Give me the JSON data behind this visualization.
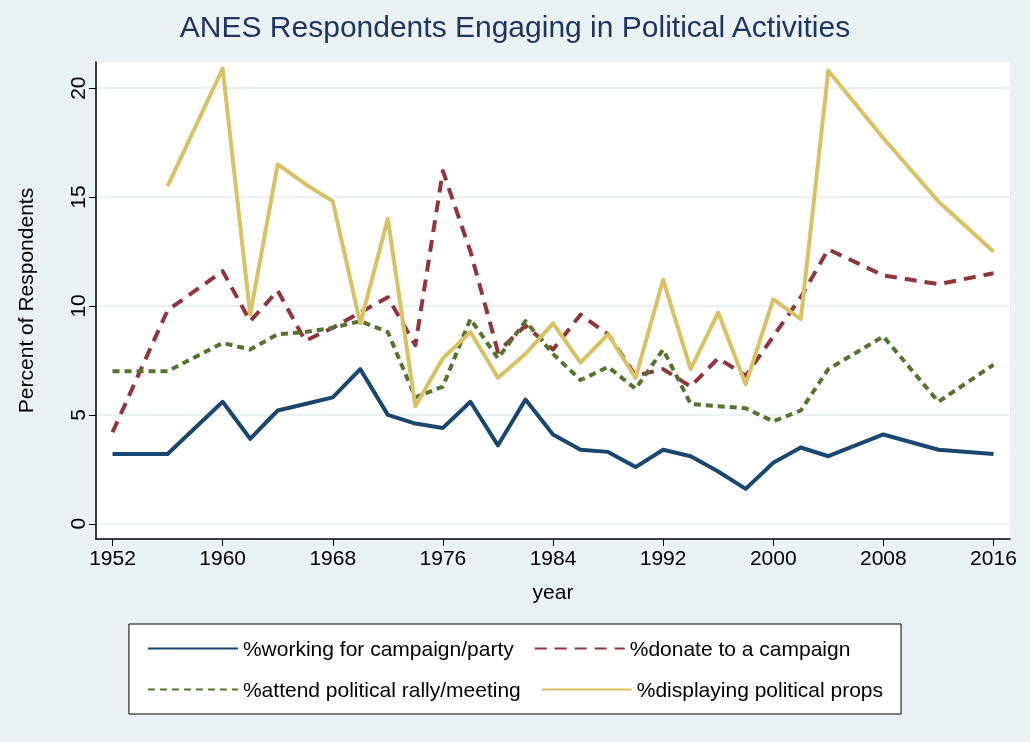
{
  "chart_data": {
    "type": "line",
    "title": "ANES Respondents Engaging in Political Activities",
    "xlabel": "year",
    "ylabel": "Percent of Respondents",
    "x": [
      1952,
      1956,
      1960,
      1962,
      1964,
      1966,
      1968,
      1970,
      1972,
      1974,
      1976,
      1978,
      1980,
      1982,
      1984,
      1986,
      1988,
      1990,
      1992,
      1994,
      1996,
      1998,
      2000,
      2002,
      2004,
      2008,
      2012,
      2016
    ],
    "series": [
      {
        "name": "%working for campaign/party",
        "color": "#1a476f",
        "line_style": "solid",
        "values": [
          3.2,
          3.2,
          5.6,
          3.9,
          5.2,
          5.5,
          5.8,
          7.1,
          5.0,
          4.6,
          4.4,
          5.6,
          3.6,
          5.7,
          4.1,
          3.4,
          3.3,
          2.6,
          3.4,
          3.1,
          2.4,
          1.6,
          2.8,
          3.5,
          3.1,
          4.1,
          3.4,
          3.2
        ]
      },
      {
        "name": "%donate to a campaign",
        "color": "#90353b",
        "line_style": "dashed",
        "values": [
          4.2,
          9.8,
          11.6,
          9.3,
          10.7,
          8.4,
          9.0,
          9.7,
          10.4,
          8.2,
          16.2,
          12.5,
          7.9,
          9.1,
          8.0,
          9.6,
          8.7,
          6.8,
          7.1,
          6.3,
          7.6,
          6.8,
          8.6,
          10.4,
          12.6,
          11.4,
          11.0,
          11.5
        ]
      },
      {
        "name": "%attend political rally/meeting",
        "color": "#55752f",
        "line_style": "dotted",
        "values": [
          7.0,
          7.0,
          8.3,
          8.0,
          8.7,
          8.8,
          9.0,
          9.3,
          8.8,
          5.8,
          6.3,
          9.4,
          7.6,
          9.3,
          7.8,
          6.6,
          7.2,
          6.2,
          8.0,
          5.5,
          5.4,
          5.3,
          4.7,
          5.2,
          7.1,
          8.6,
          5.6,
          7.3
        ]
      },
      {
        "name": "%displaying political props",
        "color": "#d9c263",
        "line_style": "solid",
        "values": [
          null,
          15.5,
          20.9,
          9.6,
          16.5,
          15.6,
          14.8,
          9.2,
          14.0,
          5.4,
          7.6,
          8.8,
          6.7,
          7.8,
          9.2,
          7.4,
          8.7,
          6.7,
          11.2,
          7.1,
          9.7,
          6.4,
          10.3,
          9.4,
          20.8,
          17.7,
          14.8,
          12.5
        ]
      }
    ],
    "xlim": [
      1950.8,
      2017.2
    ],
    "xticks": [
      1952,
      1960,
      1968,
      1976,
      1984,
      1992,
      2000,
      2008,
      2016
    ],
    "ylim": [
      -0.7,
      21.2
    ],
    "yticks": [
      0,
      5,
      10,
      15,
      20
    ],
    "grid": "y",
    "legend": "bottom",
    "marker": "none"
  }
}
